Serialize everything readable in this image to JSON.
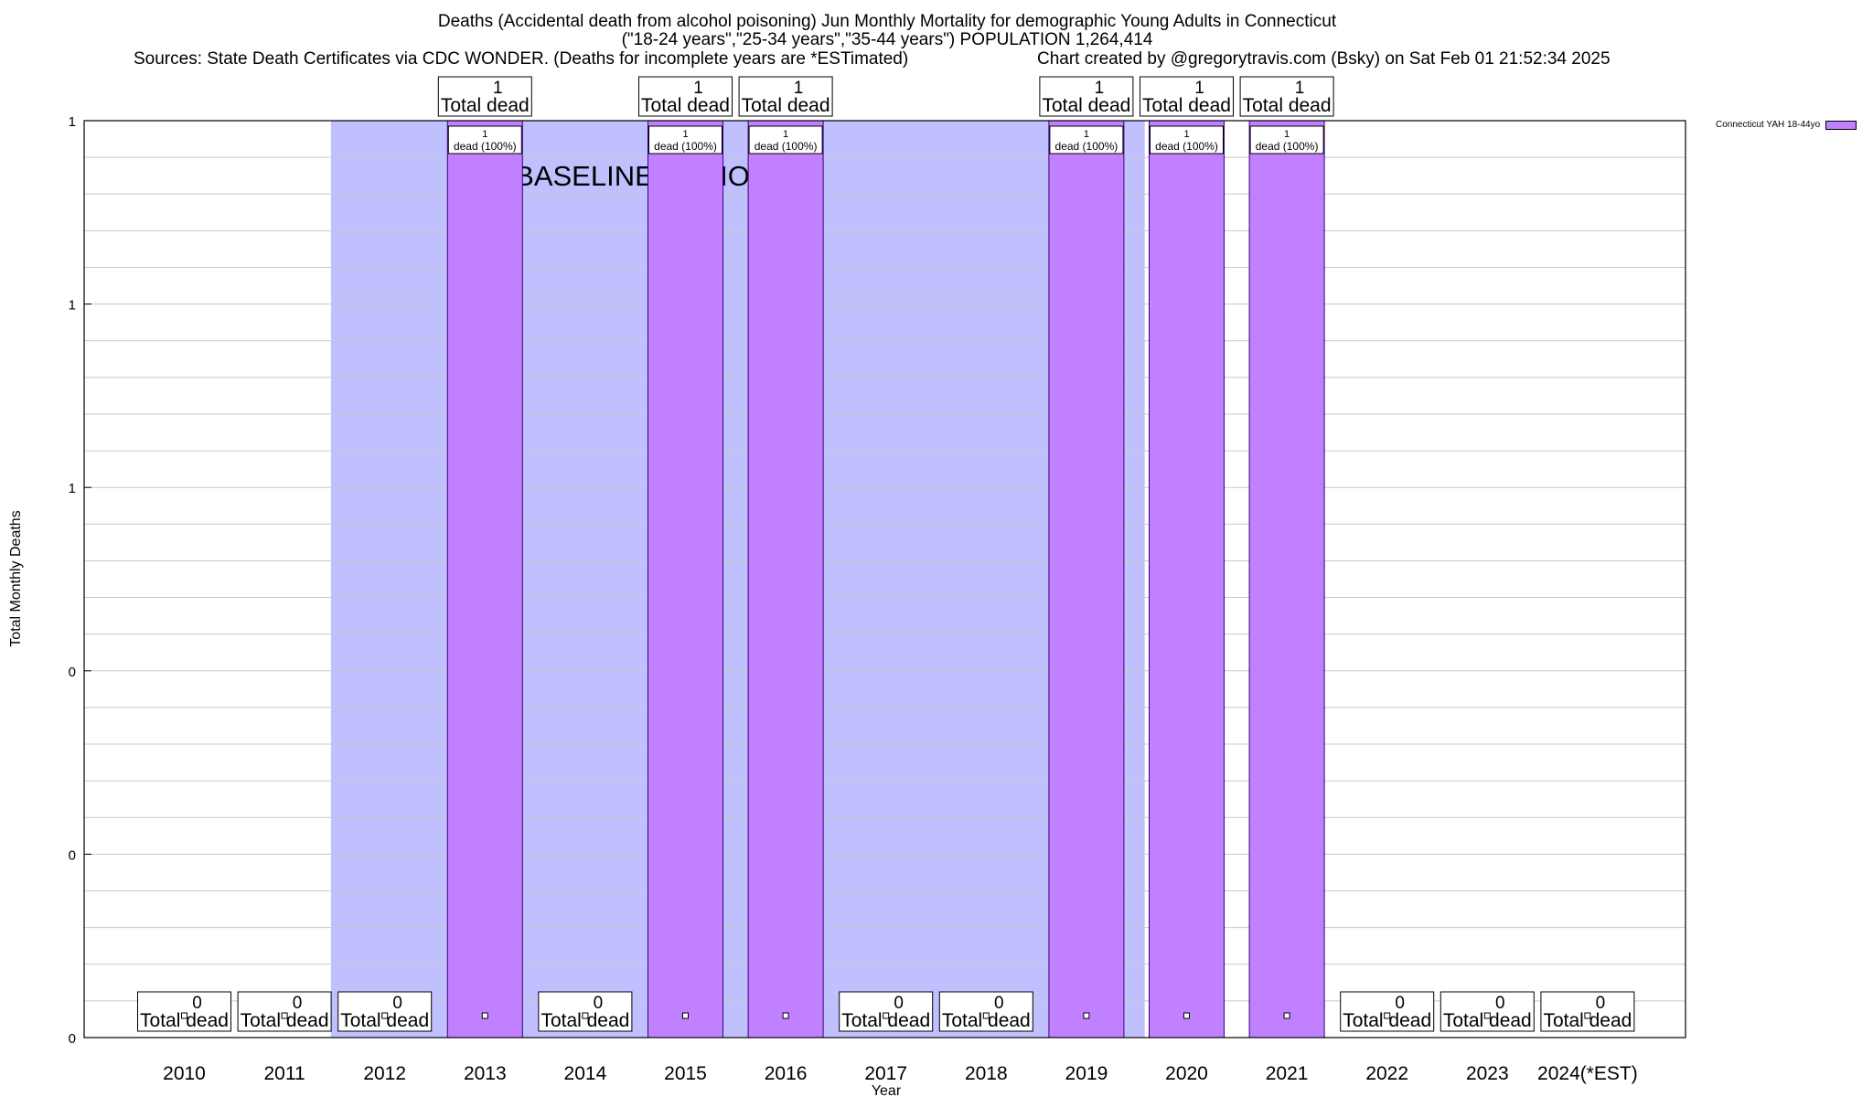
{
  "header": {
    "title_line1": "Deaths (Accidental death from alcohol poisoning) Jun Monthly Mortality for demographic Young Adults in Connecticut",
    "title_line2": "(\"18-24 years\",\"25-34 years\",\"35-44 years\") POPULATION 1,264,414",
    "sources": "Sources: State Death Certificates via CDC WONDER. (Deaths for incomplete years are *ESTimated)",
    "credit": "Chart created by @gregorytravis.com (Bsky) on Sat Feb 01 21:52:34 2025"
  },
  "legend": {
    "label": "Connecticut YAH 18-44yo",
    "color": "#c080ff"
  },
  "chart_data": {
    "type": "bar",
    "title": "Deaths (Accidental death from alcohol poisoning) Jun Monthly Mortality for demographic Young Adults in Connecticut",
    "xlabel": "Year",
    "ylabel": "Total Monthly Deaths",
    "ylim": [
      0,
      1
    ],
    "y_tick_labels": [
      "0",
      "0",
      "0",
      "1",
      "1",
      "1"
    ],
    "categories": [
      "2010",
      "2011",
      "2012",
      "2013",
      "2014",
      "2015",
      "2016",
      "2017",
      "2018",
      "2019",
      "2020",
      "2021",
      "2022",
      "2023",
      "2024(*EST)"
    ],
    "series": [
      {
        "name": "Connecticut YAH 18-44yo",
        "values": [
          0,
          0,
          0,
          1,
          0,
          1,
          1,
          0,
          0,
          1,
          1,
          1,
          0,
          0,
          0
        ]
      }
    ],
    "total_label_text": "Total dead",
    "bar_label_text": "dead (100%)",
    "baseline_period": {
      "from": "2012",
      "to": "2020",
      "label": "BASELINE PERIOD"
    },
    "grid": true,
    "legend_position": "top-right",
    "colors": {
      "bar": "#c080ff",
      "baseline": "#c0c0ff",
      "grid": "#c8c8c8"
    }
  }
}
